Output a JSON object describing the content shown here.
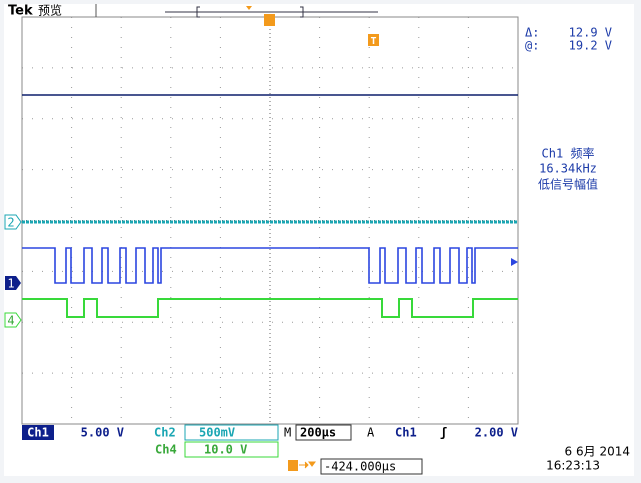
{
  "header": {
    "brand": "Tek",
    "mode": "预览"
  },
  "cursor": {
    "delta_label": "Δ:",
    "delta_value": "12.9 V",
    "at_label": "@:",
    "at_value": "19.2 V"
  },
  "measurement": {
    "line1": "Ch1 频率",
    "line2": "16.34kHz",
    "line3": "低信号幅值"
  },
  "markers": {
    "ch2": "2",
    "ch1": "1",
    "ch4": "4",
    "trigger": "T"
  },
  "status": {
    "ch1_label": "Ch1",
    "ch1_scale": "5.00 V",
    "ch2_label": "Ch2",
    "ch2_scale": "500mV",
    "ch4_label": "Ch4",
    "ch4_scale": "10.0 V",
    "time_label": "M",
    "time_scale": "200µs",
    "trig_label": "A",
    "trig_source": "Ch1",
    "trig_slope": "ʃ",
    "trig_level": "2.00 V",
    "date": "6 6月 2014",
    "time": "16:23:13",
    "trig_offset": "-424.000µs"
  }
}
